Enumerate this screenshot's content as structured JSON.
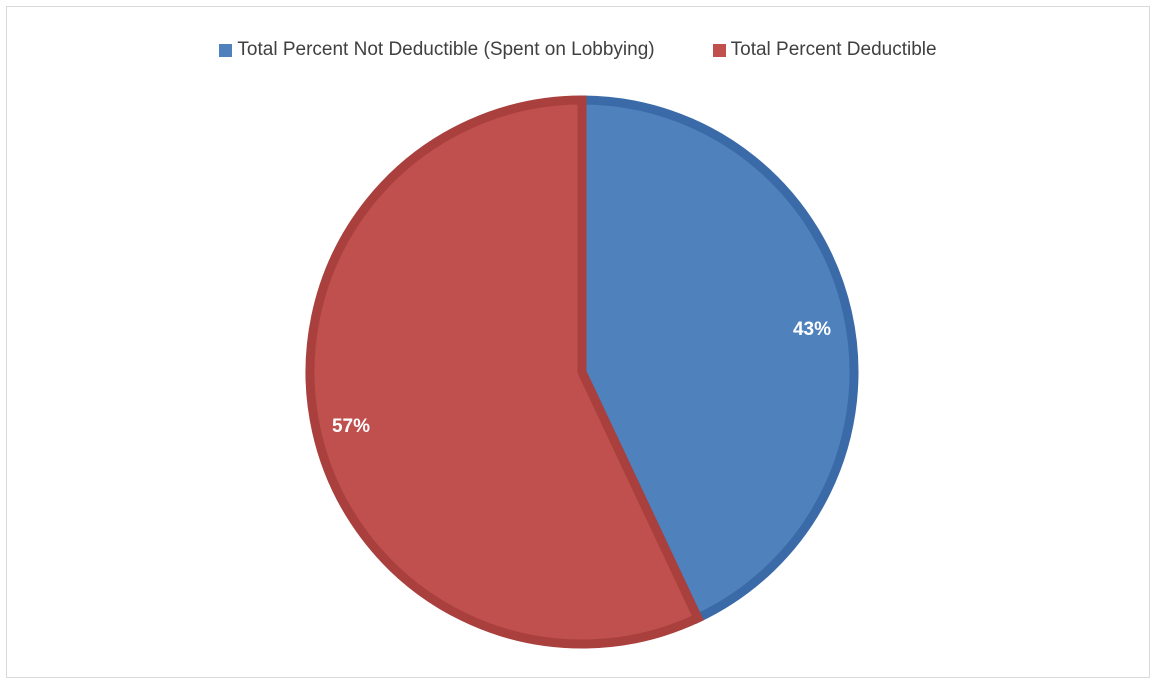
{
  "chart_data": {
    "type": "pie",
    "title": "",
    "legend_position": "top",
    "slices": [
      {
        "name": "Total Percent Not Deductible (Spent on Lobbying)",
        "value": 43,
        "label": "43%",
        "color": "#4F81BD",
        "edge_color": "#3A6BA8"
      },
      {
        "name": "Total Percent Deductible",
        "value": 57,
        "label": "57%",
        "color": "#C0504D",
        "edge_color": "#A9403D"
      }
    ]
  }
}
